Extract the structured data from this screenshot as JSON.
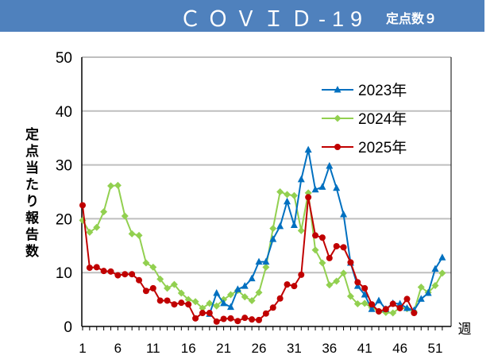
{
  "header": {
    "title": "ＣＯＶＩＤ-19",
    "subtitle": "定点数９",
    "color": "#4f81bd"
  },
  "chart_data": {
    "type": "line",
    "title": "ＣＯＶＩＤ-19",
    "ylabel": "定点当たり報告数",
    "xlabel": "週",
    "ylim": [
      0,
      50
    ],
    "yticks": [
      0,
      10,
      20,
      30,
      40,
      50
    ],
    "xlim": [
      1,
      52
    ],
    "xticks": [
      1,
      6,
      11,
      16,
      21,
      26,
      31,
      36,
      41,
      46,
      51
    ],
    "grid": true,
    "legend": "top-right",
    "series": [
      {
        "name": "2023年",
        "color": "#0070c0",
        "marker": "triangle",
        "start_week": 19,
        "values": [
          2.3,
          6.2,
          4.3,
          3.6,
          6.9,
          7.5,
          8.9,
          12.0,
          12.0,
          16.2,
          18.6,
          23.2,
          18.8,
          27.3,
          32.8,
          25.4,
          25.9,
          29.8,
          25.7,
          20.8,
          11.8,
          7.5,
          5.9,
          3.2,
          4.8,
          3.2,
          4.3,
          4.2,
          3.4,
          3.0,
          5.1,
          6.2,
          10.7,
          12.8
        ]
      },
      {
        "name": "2024年",
        "color": "#92d050",
        "marker": "diamond",
        "start_week": 1,
        "values": [
          19.7,
          17.5,
          18.4,
          21.3,
          26.1,
          26.2,
          20.5,
          17.2,
          16.9,
          11.8,
          11.0,
          8.8,
          7.1,
          7.8,
          6.2,
          5.0,
          4.6,
          3.4,
          4.3,
          3.8,
          5.0,
          5.9,
          6.7,
          5.5,
          4.8,
          6.3,
          11.0,
          18.2,
          25.0,
          24.5,
          24.3,
          17.8,
          24.8,
          14.2,
          11.8,
          7.7,
          8.4,
          9.9,
          5.6,
          4.2,
          4.3,
          3.5,
          2.8,
          2.6,
          2.5,
          3.5,
          3.3,
          2.8,
          7.3,
          6.3,
          7.6,
          9.9
        ]
      },
      {
        "name": "2025年",
        "color": "#c00000",
        "marker": "circle",
        "start_week": 1,
        "values": [
          22.5,
          10.9,
          11.0,
          10.3,
          10.2,
          9.5,
          9.7,
          9.7,
          8.6,
          6.6,
          7.1,
          4.8,
          4.8,
          4.1,
          4.4,
          4.1,
          1.5,
          2.5,
          2.5,
          0.9,
          1.4,
          1.5,
          1.0,
          1.6,
          1.3,
          1.2,
          2.4,
          3.5,
          5.2,
          7.8,
          7.5,
          9.6,
          24.0,
          16.9,
          16.5,
          12.7,
          14.9,
          14.7,
          11.9,
          8.2,
          7.1,
          4.1,
          2.8,
          3.2,
          4.2,
          3.4,
          5.1,
          2.5
        ]
      }
    ]
  }
}
